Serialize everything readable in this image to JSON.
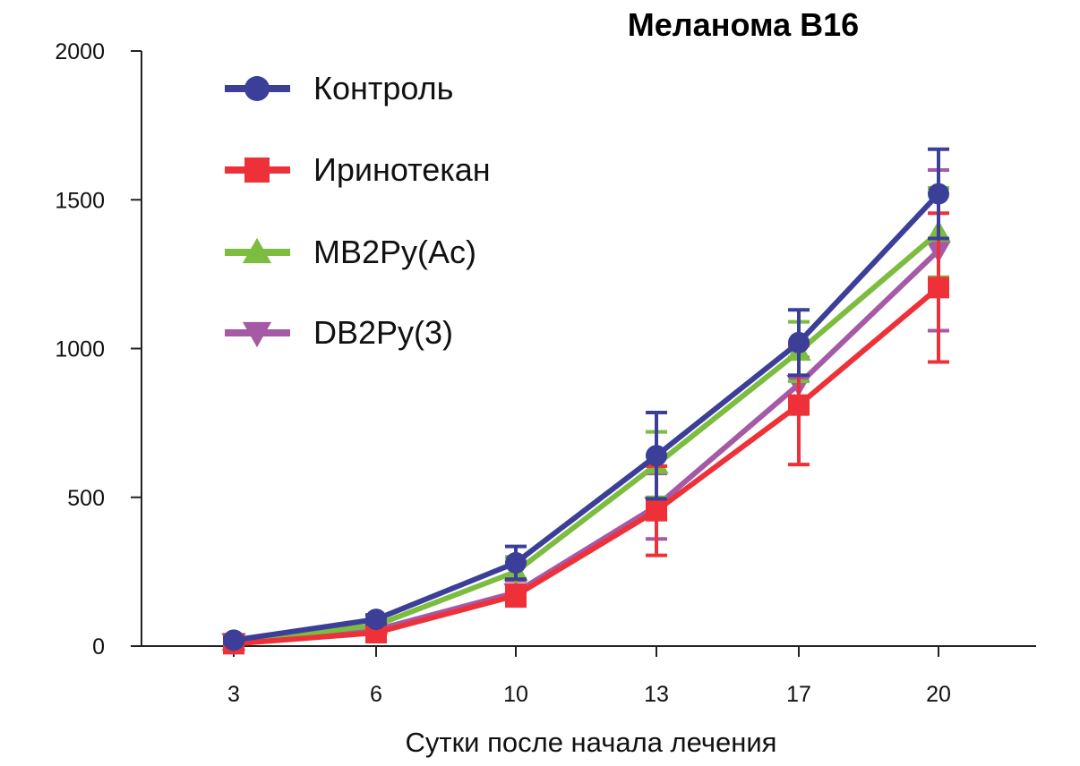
{
  "chart_data": {
    "type": "line",
    "title": "Меланома B16",
    "xlabel": "Сутки после начала лечения",
    "ylabel": "",
    "x": [
      3,
      6,
      10,
      13,
      17,
      20
    ],
    "x_tick_labels": [
      "3",
      "6",
      "10",
      "13",
      "17",
      "20"
    ],
    "ylim": [
      0,
      2000
    ],
    "y_ticks": [
      0,
      500,
      1000,
      1500,
      2000
    ],
    "y_tick_labels": [
      "0",
      "500",
      "1000",
      "1500",
      "2000"
    ],
    "grid": false,
    "legend_position": "top-left",
    "series": [
      {
        "name": "Контроль",
        "color": "#3b3f97",
        "marker": "circle",
        "values": [
          20,
          90,
          280,
          640,
          1020,
          1520
        ],
        "errors": [
          8,
          15,
          55,
          145,
          110,
          150
        ]
      },
      {
        "name": "Иринотекан",
        "color": "#ee3139",
        "marker": "square",
        "values": [
          8,
          45,
          170,
          455,
          810,
          1205
        ],
        "errors": [
          5,
          15,
          35,
          150,
          200,
          250
        ]
      },
      {
        "name": "MB2Py(Ac)",
        "color": "#7cbc3f",
        "marker": "triangle-up",
        "values": [
          15,
          70,
          250,
          610,
          990,
          1390
        ],
        "errors": [
          6,
          15,
          50,
          110,
          100,
          150
        ]
      },
      {
        "name": "DB2Py(3)",
        "color": "#a659a5",
        "marker": "triangle-down",
        "values": [
          12,
          55,
          180,
          470,
          880,
          1330
        ],
        "errors": [
          6,
          15,
          40,
          110,
          90,
          270
        ]
      }
    ]
  }
}
